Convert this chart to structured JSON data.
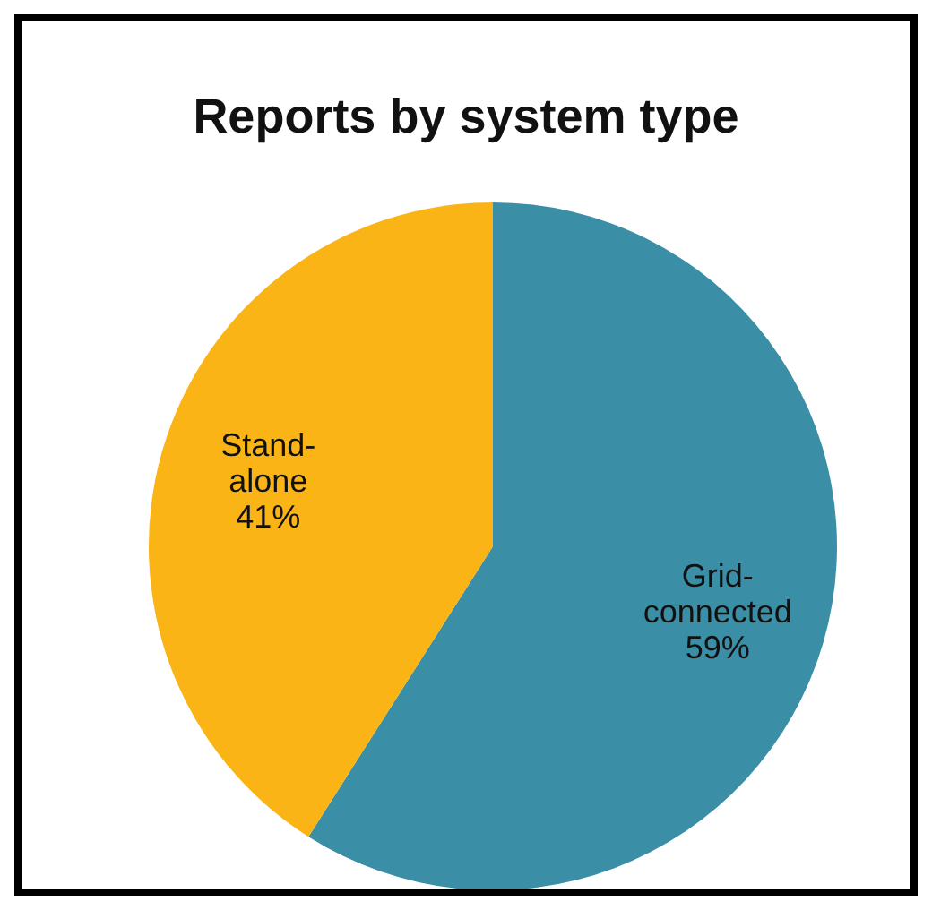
{
  "chart_data": {
    "type": "pie",
    "title": "Reports by system type",
    "categories": [
      "Grid-connected",
      "Stand-alone"
    ],
    "values": [
      59,
      41
    ],
    "colors": [
      "#3a8fa6",
      "#fbb416"
    ],
    "value_labels": [
      "59%",
      "41%"
    ]
  }
}
